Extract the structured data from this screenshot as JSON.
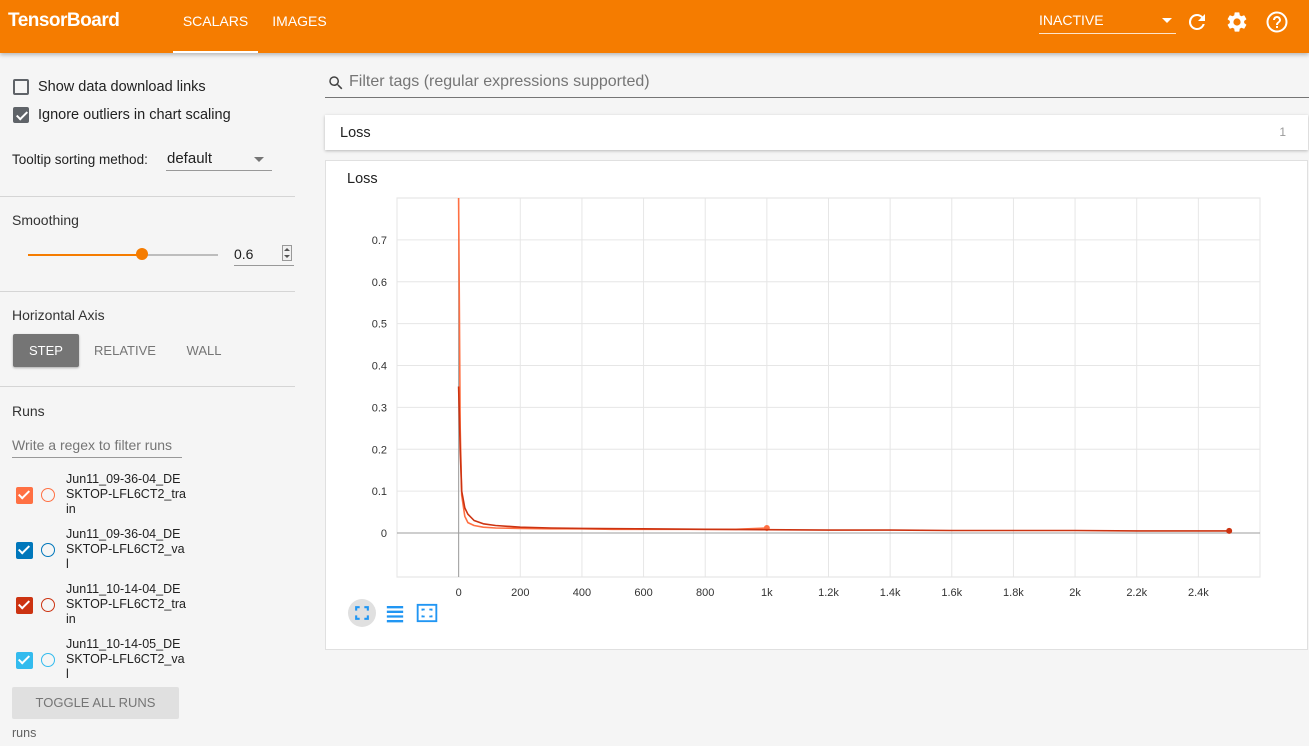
{
  "header": {
    "brand": "TensorBoard",
    "tabs": [
      {
        "label": "SCALARS",
        "active": true
      },
      {
        "label": "IMAGES",
        "active": false
      }
    ],
    "status_select": "INACTIVE",
    "icons": [
      "refresh-icon",
      "settings-icon",
      "help-icon"
    ],
    "color": "#f57c00"
  },
  "sidebar": {
    "show_download_links": {
      "label": "Show data download links",
      "checked": false
    },
    "ignore_outliers": {
      "label": "Ignore outliers in chart scaling",
      "checked": true
    },
    "tooltip_sorting": {
      "label": "Tooltip sorting method:",
      "value": "default"
    },
    "smoothing": {
      "title": "Smoothing",
      "value": "0.6",
      "level": 0.6
    },
    "horizontal_axis": {
      "title": "Horizontal Axis",
      "options": [
        "STEP",
        "RELATIVE",
        "WALL"
      ],
      "selected": "STEP"
    },
    "runs": {
      "title": "Runs",
      "filter_placeholder": "Write a regex to filter runs",
      "items": [
        {
          "name": "Jun11_09-36-04_DESKTOP-LFL6CT2_train",
          "color": "#ff7043",
          "checked": true
        },
        {
          "name": "Jun11_09-36-04_DESKTOP-LFL6CT2_val",
          "color": "#0077bb",
          "checked": true
        },
        {
          "name": "Jun11_10-14-04_DESKTOP-LFL6CT2_train",
          "color": "#cc3311",
          "checked": true
        },
        {
          "name": "Jun11_10-14-05_DESKTOP-LFL6CT2_val",
          "color": "#33bbee",
          "checked": true
        }
      ],
      "toggle_label": "TOGGLE ALL RUNS",
      "footer": "runs"
    }
  },
  "main": {
    "filter_placeholder": "Filter tags (regular expressions supported)",
    "card": {
      "title": "Loss",
      "count": "1"
    },
    "chart_title": "Loss"
  },
  "chart_data": {
    "type": "line",
    "title": "Loss",
    "xlabel": "",
    "ylabel": "",
    "x_ticks": [
      "0",
      "200",
      "400",
      "600",
      "800",
      "1k",
      "1.2k",
      "1.4k",
      "1.6k",
      "1.8k",
      "2k",
      "2.2k",
      "2.4k"
    ],
    "y_ticks": [
      "0",
      "0.1",
      "0.2",
      "0.3",
      "0.4",
      "0.5",
      "0.6",
      "0.7"
    ],
    "xlim": [
      -200,
      2600
    ],
    "ylim": [
      -0.105,
      0.8
    ],
    "grid": true,
    "series": [
      {
        "name": "Jun11_09-36-04_DESKTOP-LFL6CT2_train",
        "color": "#ff7043",
        "x": [
          0,
          5,
          10,
          20,
          30,
          50,
          80,
          120,
          200,
          300,
          400,
          500,
          600,
          700,
          800,
          900,
          1000
        ],
        "y": [
          0.8,
          0.25,
          0.09,
          0.04,
          0.025,
          0.018,
          0.014,
          0.012,
          0.011,
          0.01,
          0.01,
          0.009,
          0.009,
          0.009,
          0.009,
          0.009,
          0.012
        ]
      },
      {
        "name": "Jun11_10-14-04_DESKTOP-LFL6CT2_train",
        "color": "#cc3311",
        "x": [
          0,
          5,
          10,
          20,
          30,
          50,
          80,
          120,
          200,
          300,
          400,
          600,
          800,
          1000,
          1200,
          1400,
          1600,
          1800,
          2000,
          2200,
          2400,
          2500
        ],
        "y": [
          0.35,
          0.2,
          0.1,
          0.06,
          0.045,
          0.03,
          0.022,
          0.018,
          0.014,
          0.012,
          0.011,
          0.01,
          0.009,
          0.008,
          0.007,
          0.007,
          0.006,
          0.006,
          0.006,
          0.005,
          0.005,
          0.005
        ]
      }
    ]
  }
}
